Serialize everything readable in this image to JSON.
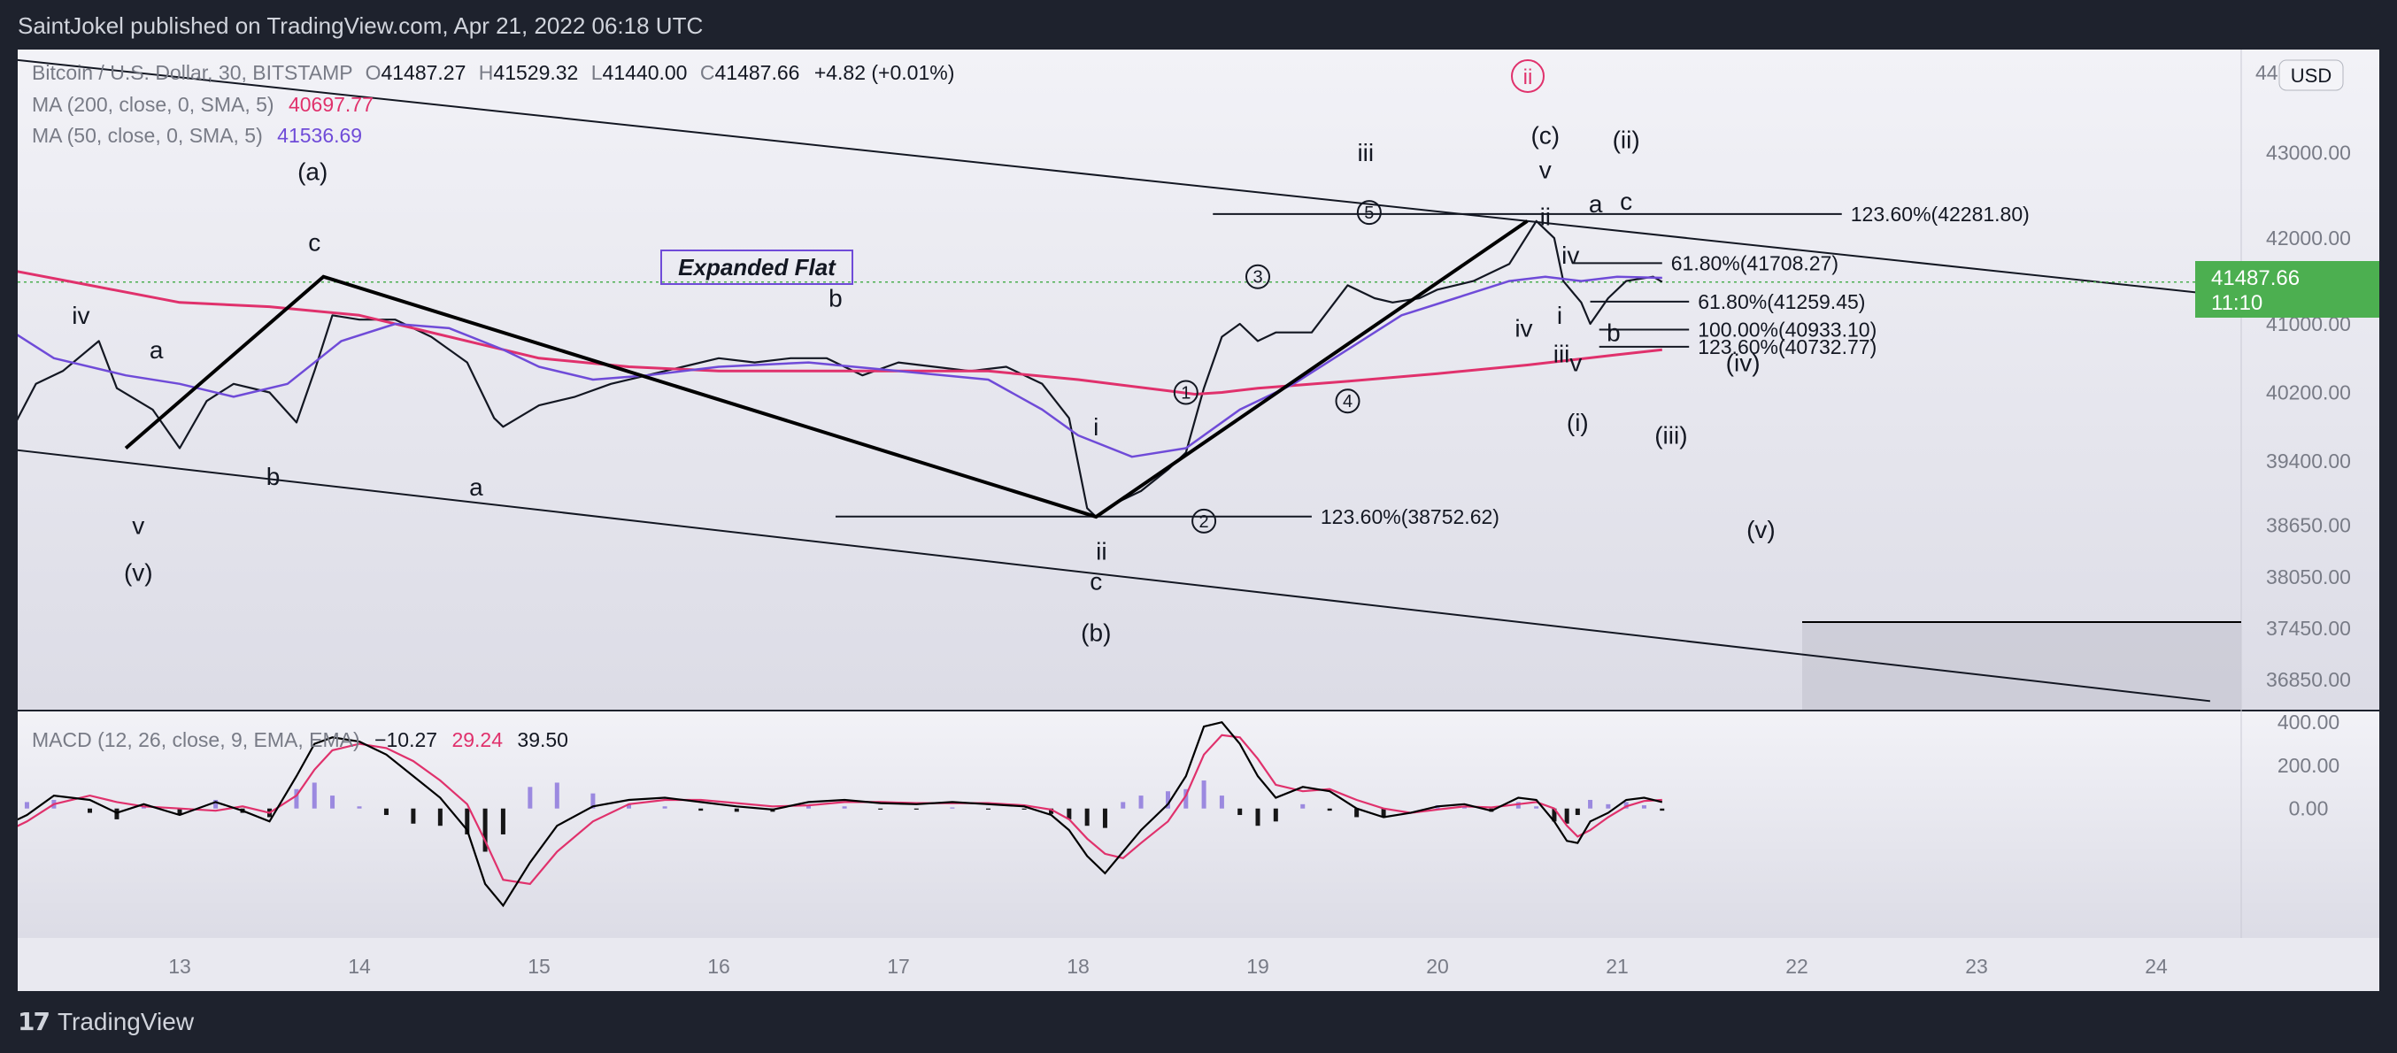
{
  "header": {
    "publisher": "SaintJokel published on TradingView.com, Apr 21, 2022 06:18 UTC"
  },
  "footer": {
    "brand": "TradingView",
    "logo": "tradingview-logo-icon"
  },
  "colors": {
    "bg": "#1e222d",
    "pane": "#e6e6ee",
    "ma200": "#e0316c",
    "ma50": "#6f4bd8",
    "macd": "#000000",
    "signal": "#e0316c",
    "last": "#4caf50",
    "hist_up": "#7b61d9",
    "hist_dn": "#000000"
  },
  "legend": {
    "symbol": "Bitcoin / U.S. Dollar, 30, BITSTAMP",
    "o_label": "O",
    "o": "41487.27",
    "h_label": "H",
    "h": "41529.32",
    "l_label": "L",
    "l": "41440.00",
    "c_label": "C",
    "c": "41487.66",
    "chg": "+4.82 (+0.01%)",
    "ma200_label": "MA (200, close, 0, SMA, 5)",
    "ma200": "40697.77",
    "ma50_label": "MA (50, close, 0, SMA, 5)",
    "ma50": "41536.69"
  },
  "macd_legend": {
    "label": "MACD (12, 26, close, 9, EMA, EMA)",
    "hist": "−10.27",
    "macd": "29.24",
    "signal": "39.50"
  },
  "currency": "USD",
  "price_axis": [
    "43000.00",
    "42000.00",
    "41000.00",
    "40200.00",
    "39400.00",
    "38650.00",
    "38050.00",
    "37450.00",
    "36850.00"
  ],
  "price_top_partial": "44",
  "macd_axis": [
    "400.00",
    "200.00",
    "0.00"
  ],
  "last_price": {
    "value": "41487.66",
    "countdown": "11:10"
  },
  "chart_data": {
    "type": "line",
    "title": "Bitcoin / U.S. Dollar, 30, BITSTAMP",
    "x_ticks": [
      "13",
      "14",
      "15",
      "16",
      "17",
      "18",
      "19",
      "20",
      "21",
      "22",
      "23",
      "24"
    ],
    "price_ylim": [
      36500,
      44200
    ],
    "series": [
      {
        "name": "BTC close",
        "x": [
          12.0,
          12.2,
          12.35,
          12.55,
          12.65,
          12.85,
          13.0,
          13.15,
          13.3,
          13.5,
          13.65,
          13.75,
          13.85,
          14.0,
          14.2,
          14.4,
          14.6,
          14.75,
          14.8,
          15.0,
          15.2,
          15.4,
          15.6,
          15.8,
          16.0,
          16.2,
          16.4,
          16.6,
          16.8,
          17.0,
          17.2,
          17.4,
          17.6,
          17.8,
          17.95,
          18.05,
          18.1,
          18.2,
          18.35,
          18.5,
          18.6,
          18.7,
          18.8,
          18.9,
          19.0,
          19.1,
          19.3,
          19.5,
          19.65,
          19.75,
          19.9,
          20.0,
          20.2,
          20.4,
          20.55,
          20.65,
          20.7,
          20.8,
          20.85,
          20.95,
          21.05,
          21.2,
          21.25
        ],
        "y": [
          39500,
          40300,
          40450,
          40800,
          40250,
          40000,
          39550,
          40100,
          40300,
          40200,
          39850,
          40450,
          41100,
          41050,
          41050,
          40850,
          40550,
          39900,
          39800,
          40050,
          40150,
          40300,
          40400,
          40500,
          40600,
          40550,
          40600,
          40600,
          40400,
          40550,
          40500,
          40450,
          40500,
          40300,
          39900,
          38850,
          38750,
          38900,
          39050,
          39300,
          39500,
          40250,
          40850,
          41000,
          40800,
          40900,
          40900,
          41450,
          41300,
          41250,
          41300,
          41400,
          41500,
          41700,
          42200,
          42000,
          41500,
          41250,
          41000,
          41300,
          41500,
          41550,
          41490
        ]
      },
      {
        "name": "MA (200, close, 0, SMA, 5)",
        "x": [
          12.0,
          12.5,
          13.0,
          13.5,
          14.0,
          14.5,
          15.0,
          15.5,
          16.0,
          16.5,
          17.0,
          17.5,
          18.0,
          18.5,
          18.65,
          18.8,
          19.0,
          19.5,
          20.0,
          20.5,
          21.0,
          21.25
        ],
        "y": [
          41650,
          41450,
          41250,
          41200,
          41100,
          40850,
          40600,
          40500,
          40450,
          40450,
          40450,
          40450,
          40350,
          40220,
          40180,
          40200,
          40250,
          40330,
          40420,
          40520,
          40640,
          40698
        ]
      },
      {
        "name": "MA (50, close, 0, SMA, 5)",
        "x": [
          12.0,
          12.3,
          12.7,
          13.0,
          13.3,
          13.6,
          13.9,
          14.2,
          14.5,
          14.8,
          15.0,
          15.3,
          15.6,
          16.0,
          16.5,
          17.0,
          17.5,
          17.8,
          18.0,
          18.3,
          18.6,
          18.9,
          19.2,
          19.5,
          19.8,
          20.1,
          20.4,
          20.6,
          20.8,
          21.0,
          21.25
        ],
        "y": [
          41000,
          40600,
          40400,
          40300,
          40150,
          40300,
          40800,
          41000,
          40950,
          40700,
          40500,
          40350,
          40400,
          40500,
          40550,
          40450,
          40350,
          40000,
          39700,
          39450,
          39550,
          40000,
          40300,
          40700,
          41100,
          41300,
          41500,
          41550,
          41500,
          41550,
          41537
        ]
      }
    ],
    "ellipse_channel": [
      [
        12.0,
        44100
      ],
      [
        24.3,
        41350
      ]
    ],
    "channel_lower": [
      [
        12.0,
        39550
      ],
      [
        24.3,
        36600
      ]
    ],
    "levels": [
      {
        "label": "123.60%(42281.80)",
        "y": 42281.8,
        "x1": 18.75,
        "x2": 22.25
      },
      {
        "label": "61.80%(41708.27)",
        "y": 41708.27,
        "x1": 20.75,
        "x2": 21.25
      },
      {
        "label": "61.80%(41259.45)",
        "y": 41259.45,
        "x1": 20.85,
        "x2": 21.4
      },
      {
        "label": "100.00%(40933.10)",
        "y": 40933.1,
        "x1": 20.9,
        "x2": 21.4
      },
      {
        "label": "123.60%(40732.77)",
        "y": 40732.77,
        "x1": 20.9,
        "x2": 21.4
      },
      {
        "label": "123.60%(38752.62)",
        "y": 38752.62,
        "x1": 16.65,
        "x2": 19.3
      }
    ],
    "box_label": "Expanded Flat",
    "wave_labels": [
      {
        "t": "iv",
        "x": 12.45,
        "y": 41000
      },
      {
        "t": "a",
        "x": 12.87,
        "y": 40600
      },
      {
        "t": "v",
        "x": 12.77,
        "y": 38550
      },
      {
        "t": "(v)",
        "x": 12.77,
        "y": 38000
      },
      {
        "t": "b",
        "x": 13.52,
        "y": 39120
      },
      {
        "t": "c",
        "x": 13.75,
        "y": 41850
      },
      {
        "t": "(a)",
        "x": 13.74,
        "y": 42680
      },
      {
        "t": "b",
        "x": 16.65,
        "y": 41200
      },
      {
        "t": "a",
        "x": 14.65,
        "y": 39000
      },
      {
        "t": "i",
        "x": 18.1,
        "y": 39700
      },
      {
        "t": "ii",
        "x": 18.13,
        "y": 38250
      },
      {
        "t": "c",
        "x": 18.1,
        "y": 37900
      },
      {
        "t": "(b)",
        "x": 18.1,
        "y": 37300
      },
      {
        "t": "iii",
        "x": 19.6,
        "y": 42900
      },
      {
        "t": "iv",
        "x": 20.48,
        "y": 40850
      },
      {
        "t": "v",
        "x": 20.6,
        "y": 42700
      },
      {
        "t": "(c)",
        "x": 20.6,
        "y": 43100
      },
      {
        "t": "ii",
        "x": 20.6,
        "y": 42150
      },
      {
        "t": "iv",
        "x": 20.74,
        "y": 41700
      },
      {
        "t": "i",
        "x": 20.68,
        "y": 41000
      },
      {
        "t": "iii",
        "x": 20.69,
        "y": 40550
      },
      {
        "t": "v",
        "x": 20.77,
        "y": 40450
      },
      {
        "t": "a",
        "x": 20.88,
        "y": 42300
      },
      {
        "t": "c",
        "x": 21.05,
        "y": 42330
      },
      {
        "t": "(ii)",
        "x": 21.05,
        "y": 43050
      },
      {
        "t": "b",
        "x": 20.98,
        "y": 40800
      },
      {
        "t": "(i)",
        "x": 20.78,
        "y": 39750
      },
      {
        "t": "(iii)",
        "x": 21.3,
        "y": 39600
      },
      {
        "t": "(iv)",
        "x": 21.7,
        "y": 40450
      },
      {
        "t": "(v)",
        "x": 21.8,
        "y": 38500
      }
    ],
    "circled_labels": [
      {
        "t": "1",
        "x": 18.6,
        "y": 40200
      },
      {
        "t": "2",
        "x": 18.7,
        "y": 38700
      },
      {
        "t": "3",
        "x": 19.0,
        "y": 41550
      },
      {
        "t": "4",
        "x": 19.5,
        "y": 40100
      },
      {
        "t": "5",
        "x": 19.62,
        "y": 42300
      }
    ],
    "top_marker": "ii",
    "macd": {
      "ylim": [
        -600,
        450
      ],
      "x": [
        12.0,
        12.15,
        12.3,
        12.5,
        12.65,
        12.8,
        13.0,
        13.2,
        13.35,
        13.5,
        13.65,
        13.75,
        13.85,
        14.0,
        14.15,
        14.3,
        14.45,
        14.6,
        14.7,
        14.8,
        14.95,
        15.1,
        15.3,
        15.5,
        15.7,
        15.9,
        16.1,
        16.3,
        16.5,
        16.7,
        16.9,
        17.1,
        17.3,
        17.5,
        17.7,
        17.85,
        17.95,
        18.05,
        18.15,
        18.25,
        18.35,
        18.5,
        18.6,
        18.7,
        18.8,
        18.9,
        19.0,
        19.1,
        19.25,
        19.4,
        19.55,
        19.7,
        19.85,
        20.0,
        20.15,
        20.3,
        20.45,
        20.55,
        20.65,
        20.72,
        20.78,
        20.85,
        20.95,
        21.05,
        21.15,
        21.25
      ],
      "macd": [
        -90,
        -30,
        60,
        40,
        -20,
        20,
        -30,
        30,
        -10,
        -60,
        150,
        300,
        330,
        310,
        250,
        150,
        50,
        -100,
        -350,
        -450,
        -250,
        -80,
        10,
        40,
        50,
        30,
        10,
        -5,
        30,
        40,
        25,
        20,
        30,
        20,
        10,
        -30,
        -100,
        -220,
        -300,
        -200,
        -100,
        20,
        150,
        380,
        400,
        300,
        150,
        50,
        100,
        80,
        0,
        -40,
        -20,
        10,
        20,
        -10,
        50,
        40,
        -60,
        -150,
        -160,
        -60,
        -20,
        40,
        50,
        30
      ],
      "signal": [
        -120,
        -60,
        20,
        60,
        30,
        10,
        0,
        -10,
        10,
        -20,
        60,
        180,
        270,
        300,
        280,
        220,
        130,
        20,
        -150,
        -330,
        -350,
        -200,
        -60,
        20,
        40,
        40,
        25,
        10,
        15,
        30,
        30,
        25,
        25,
        25,
        15,
        -5,
        -50,
        -140,
        -210,
        -230,
        -160,
        -60,
        60,
        250,
        340,
        330,
        230,
        110,
        80,
        90,
        40,
        0,
        -20,
        -5,
        10,
        5,
        20,
        30,
        0,
        -80,
        -130,
        -100,
        -40,
        10,
        35,
        40
      ],
      "hist": [
        30,
        30,
        40,
        -20,
        -50,
        10,
        -30,
        40,
        -20,
        -40,
        90,
        120,
        60,
        10,
        -30,
        -70,
        -80,
        -120,
        -200,
        -120,
        100,
        120,
        70,
        20,
        10,
        -10,
        -15,
        -15,
        15,
        10,
        -5,
        -5,
        5,
        -5,
        -5,
        -25,
        -50,
        -80,
        -90,
        30,
        60,
        80,
        90,
        130,
        60,
        -30,
        -80,
        -60,
        20,
        -10,
        -40,
        -40,
        0,
        15,
        10,
        -15,
        30,
        10,
        -60,
        -70,
        -30,
        40,
        20,
        30,
        15,
        -10
      ]
    }
  }
}
